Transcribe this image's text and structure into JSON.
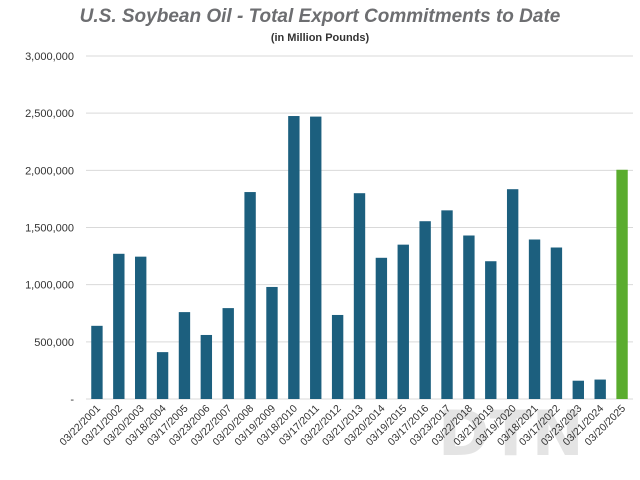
{
  "chart_data": {
    "type": "bar",
    "title": "U.S. Soybean Oil - Total Export Commitments to Date",
    "subtitle": "(in Million Pounds)",
    "categories": [
      "03/22/2001",
      "03/21/2002",
      "03/20/2003",
      "03/18/2004",
      "03/17/2005",
      "03/23/2006",
      "03/22/2007",
      "03/20/2008",
      "03/19/2009",
      "03/18/2010",
      "03/17/2011",
      "03/22/2012",
      "03/21/2013",
      "03/20/2014",
      "03/19/2015",
      "03/17/2016",
      "03/23/2017",
      "03/22/2018",
      "03/21/2019",
      "03/19/2020",
      "03/18/2021",
      "03/17/2022",
      "03/23/2023",
      "03/21/2024",
      "03/20/2025"
    ],
    "values": [
      640000,
      1270000,
      1245000,
      410000,
      760000,
      560000,
      795000,
      1810000,
      980000,
      2475000,
      2470000,
      735000,
      1800000,
      1235000,
      1350000,
      1555000,
      1650000,
      1430000,
      1205000,
      1835000,
      1395000,
      1325000,
      160000,
      170000,
      2005000
    ],
    "yticks": [
      "-",
      "500,000",
      "1,000,000",
      "1,500,000",
      "2,000,000",
      "2,500,000",
      "3,000,000"
    ],
    "ylim": [
      0,
      3000000
    ],
    "grid": true,
    "bar_color": "#1c5f7e",
    "highlight_color": "#5aac2e",
    "highlight_index": 24,
    "grid_color": "#d9d9d9"
  },
  "watermark": {
    "text": "DTN"
  }
}
